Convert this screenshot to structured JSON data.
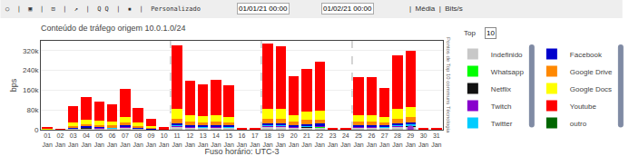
{
  "chart_data": {
    "type": "bar",
    "stacked": true,
    "title": "Conteúdo de tráfego origem 10.0.1.0/24",
    "xlabel": "Fuso horário: UTC-3",
    "ylabel": "bps",
    "categories": [
      "01\nJan",
      "02\nJan",
      "03\nJan",
      "04\nJan",
      "05\nJan",
      "06\nJan",
      "07\nJan",
      "08\nJan",
      "09\nJan",
      "10\nJan",
      "11\nJan",
      "12\nJan",
      "13\nJan",
      "14\nJan",
      "15\nJan",
      "16\nJan",
      "17\nJan",
      "18\nJan",
      "19\nJan",
      "20\nJan",
      "21\nJan",
      "22\nJan",
      "23\nJan",
      "24\nJan",
      "25\nJan",
      "26\nJan",
      "27\nJan",
      "28\nJan",
      "29\nJan",
      "30\nJan",
      "31\nJan"
    ],
    "series": [
      {
        "name": "Indefinido",
        "color": "#c8c8c8",
        "values": [
          600,
          300,
          4000,
          6500,
          5500,
          5000,
          8500,
          4000,
          2000,
          600,
          12000,
          8500,
          7500,
          8500,
          7500,
          300,
          300,
          12000,
          12000,
          8500,
          10000,
          11000,
          300,
          300,
          8500,
          8500,
          7500,
          12000,
          13000,
          300,
          300
        ]
      },
      {
        "name": "Whatsapp",
        "color": "#00ff00",
        "values": [
          80,
          40,
          250,
          350,
          300,
          250,
          450,
          250,
          130,
          40,
          700,
          500,
          450,
          500,
          450,
          40,
          40,
          700,
          700,
          500,
          600,
          650,
          40,
          40,
          500,
          500,
          450,
          700,
          750,
          40,
          40
        ]
      },
      {
        "name": "Netflix",
        "color": "#111111",
        "values": [
          80,
          40,
          450,
          700,
          550,
          450,
          800,
          450,
          250,
          80,
          1300,
          900,
          800,
          900,
          800,
          40,
          40,
          1300,
          1300,
          900,
          1100,
          1100,
          40,
          40,
          900,
          900,
          800,
          1300,
          1400,
          40,
          40
        ]
      },
      {
        "name": "Twitch",
        "color": "#8800cc",
        "values": [
          150,
          80,
          900,
          1300,
          1000,
          900,
          1600,
          900,
          450,
          120,
          2700,
          1800,
          1600,
          1800,
          1600,
          80,
          80,
          2700,
          2700,
          1800,
          2200,
          2200,
          80,
          80,
          1800,
          1800,
          1600,
          2700,
          2900,
          80,
          80
        ]
      },
      {
        "name": "Twitter",
        "color": "#00ccff",
        "values": [
          250,
          80,
          1200,
          1800,
          1500,
          1200,
          2200,
          1200,
          700,
          150,
          3500,
          2500,
          2300,
          2500,
          2200,
          80,
          80,
          3500,
          3500,
          2500,
          3000,
          3300,
          80,
          80,
          2500,
          2500,
          2200,
          3500,
          4000,
          80,
          80
        ]
      },
      {
        "name": "Facebook",
        "color": "#0000cc",
        "values": [
          400,
          150,
          2500,
          3500,
          3000,
          2500,
          4500,
          2500,
          1200,
          300,
          7000,
          5000,
          4500,
          5000,
          4500,
          150,
          150,
          7000,
          7000,
          5000,
          6000,
          6500,
          150,
          150,
          5000,
          5000,
          4500,
          7000,
          8000,
          150,
          150
        ]
      },
      {
        "name": "Google Drive",
        "color": "#ff8800",
        "values": [
          800,
          400,
          7000,
          9000,
          8000,
          7000,
          11000,
          7000,
          3500,
          800,
          18000,
          13000,
          12000,
          13000,
          11000,
          400,
          400,
          18000,
          18000,
          13000,
          16000,
          17000,
          400,
          400,
          13000,
          13000,
          11000,
          18000,
          20000,
          400,
          400
        ]
      },
      {
        "name": "Google Docs",
        "color": "#ffff00",
        "values": [
          1500,
          800,
          13000,
          18000,
          16000,
          14000,
          22000,
          13000,
          7000,
          1500,
          38000,
          28000,
          26000,
          28000,
          23000,
          800,
          800,
          38000,
          38000,
          28000,
          33000,
          36000,
          800,
          800,
          28000,
          28000,
          23000,
          38000,
          43000,
          800,
          800
        ]
      },
      {
        "name": "Youtube",
        "color": "#ff0000",
        "values": [
          4000,
          1500,
          65000,
          90000,
          78000,
          72000,
          115000,
          58000,
          28000,
          7000,
          258000,
          138000,
          128000,
          143000,
          128000,
          4000,
          4000,
          265000,
          255000,
          158000,
          175000,
          198000,
          4500,
          4000,
          152000,
          153000,
          118000,
          218000,
          228000,
          4500,
          4000
        ]
      },
      {
        "name": "outro",
        "color": "#006600",
        "values": [
          null,
          null,
          null,
          null,
          null,
          null,
          null,
          null,
          null,
          null,
          null,
          null,
          null,
          null,
          null,
          null,
          null,
          null,
          null,
          null,
          null,
          null,
          null,
          null,
          null,
          null,
          null,
          null,
          null,
          null,
          null
        ]
      },
      {
        "type": "scatter",
        "marker": "circle",
        "color": "#9933cc",
        "values": [
          null,
          null,
          null,
          null,
          null,
          null,
          null,
          null,
          null,
          null,
          null,
          null,
          null,
          null,
          null,
          null,
          null,
          null,
          null,
          null,
          null,
          null,
          null,
          null,
          null,
          null,
          null,
          null,
          5000,
          null,
          null
        ]
      }
    ],
    "ylim": [
      0,
      360000
    ],
    "yticks": [
      0,
      {
        "value": 80000,
        "label": "80k"
      },
      {
        "value": 160000,
        "label": "160k"
      },
      {
        "value": 240000,
        "label": "240k"
      },
      {
        "value": 320000,
        "label": "320k"
      }
    ],
    "grid": true,
    "legend": "right",
    "vlines": [
      9.5,
      16.5,
      23.5
    ],
    "annotations": [
      {
        "text": "○  |  ▣  |  ⊡  |  ↗  |  Q Q  |  ▪  |  Personalizado"
      },
      {
        "text": "01/01/21 00:00"
      },
      {
        "text": "01/02/21 00:00"
      },
      {
        "text": "|  Média  |  Bits/s"
      },
      {
        "text": "Top"
      },
      {
        "text": "10"
      },
      {
        "text": "Pontos de Top 10 communs Técnologia"
      }
    ]
  }
}
